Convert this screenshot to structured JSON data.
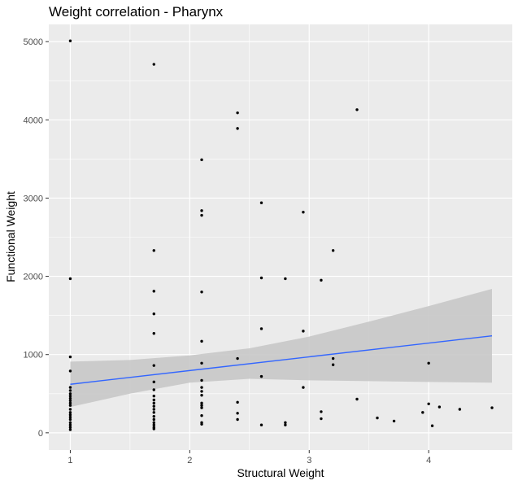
{
  "chart_data": {
    "type": "scatter",
    "title": "Weight correlation - Pharynx",
    "xlabel": "Structural Weight",
    "ylabel": "Functional Weight",
    "xlim": [
      0.82,
      4.7
    ],
    "ylim": [
      -220,
      5220
    ],
    "x_ticks": [
      1,
      2,
      3,
      4
    ],
    "y_ticks": [
      0,
      1000,
      2000,
      3000,
      4000,
      5000
    ],
    "grid": true,
    "legend": "none",
    "colors": {
      "panel": "#ebebeb",
      "grid": "#ffffff",
      "points": "#000000",
      "fit_line": "#3366ff",
      "confidence_band": "#c8c8c8"
    },
    "points": [
      [
        1,
        5010
      ],
      [
        1,
        1970
      ],
      [
        1,
        970
      ],
      [
        1,
        790
      ],
      [
        1,
        580
      ],
      [
        1,
        540
      ],
      [
        1,
        500
      ],
      [
        1,
        470
      ],
      [
        1,
        440
      ],
      [
        1,
        410
      ],
      [
        1,
        380
      ],
      [
        1,
        350
      ],
      [
        1,
        300
      ],
      [
        1,
        260
      ],
      [
        1,
        230
      ],
      [
        1,
        200
      ],
      [
        1,
        170
      ],
      [
        1,
        130
      ],
      [
        1,
        100
      ],
      [
        1,
        70
      ],
      [
        1,
        40
      ],
      [
        1.7,
        4710
      ],
      [
        1.7,
        2330
      ],
      [
        1.7,
        1810
      ],
      [
        1.7,
        1520
      ],
      [
        1.7,
        1270
      ],
      [
        1.7,
        860
      ],
      [
        1.7,
        650
      ],
      [
        1.7,
        550
      ],
      [
        1.7,
        470
      ],
      [
        1.7,
        420
      ],
      [
        1.7,
        380
      ],
      [
        1.7,
        340
      ],
      [
        1.7,
        300
      ],
      [
        1.7,
        260
      ],
      [
        1.7,
        210
      ],
      [
        1.7,
        170
      ],
      [
        1.7,
        130
      ],
      [
        1.7,
        100
      ],
      [
        1.7,
        70
      ],
      [
        1.7,
        50
      ],
      [
        2.1,
        3490
      ],
      [
        2.1,
        2840
      ],
      [
        2.1,
        2780
      ],
      [
        2.1,
        1800
      ],
      [
        2.1,
        1170
      ],
      [
        2.1,
        890
      ],
      [
        2.1,
        670
      ],
      [
        2.1,
        580
      ],
      [
        2.1,
        530
      ],
      [
        2.1,
        480
      ],
      [
        2.1,
        380
      ],
      [
        2.1,
        350
      ],
      [
        2.1,
        320
      ],
      [
        2.1,
        220
      ],
      [
        2.1,
        130
      ],
      [
        2.1,
        110
      ],
      [
        2.4,
        4090
      ],
      [
        2.4,
        3890
      ],
      [
        2.4,
        950
      ],
      [
        2.4,
        390
      ],
      [
        2.4,
        250
      ],
      [
        2.4,
        170
      ],
      [
        2.6,
        2940
      ],
      [
        2.6,
        1980
      ],
      [
        2.6,
        1330
      ],
      [
        2.6,
        720
      ],
      [
        2.6,
        100
      ],
      [
        2.8,
        1970
      ],
      [
        2.8,
        130
      ],
      [
        2.8,
        100
      ],
      [
        2.95,
        2820
      ],
      [
        2.95,
        1300
      ],
      [
        2.95,
        580
      ],
      [
        3.1,
        1950
      ],
      [
        3.1,
        270
      ],
      [
        3.1,
        180
      ],
      [
        3.2,
        2330
      ],
      [
        3.2,
        950
      ],
      [
        3.2,
        870
      ],
      [
        3.4,
        4130
      ],
      [
        3.4,
        430
      ],
      [
        3.57,
        190
      ],
      [
        3.71,
        150
      ],
      [
        3.95,
        260
      ],
      [
        4,
        890
      ],
      [
        4,
        370
      ],
      [
        4.03,
        90
      ],
      [
        4.09,
        330
      ],
      [
        4.26,
        300
      ],
      [
        4.53,
        320
      ]
    ],
    "fit_line": {
      "x": [
        1,
        4.53
      ],
      "y": [
        620,
        1240
      ]
    },
    "confidence_band": {
      "x": [
        1,
        1.5,
        2,
        2.5,
        3,
        3.5,
        4,
        4.53
      ],
      "upper": [
        910,
        930,
        990,
        1080,
        1230,
        1420,
        1620,
        1840
      ],
      "lower": [
        330,
        500,
        640,
        690,
        670,
        660,
        650,
        640
      ]
    }
  }
}
